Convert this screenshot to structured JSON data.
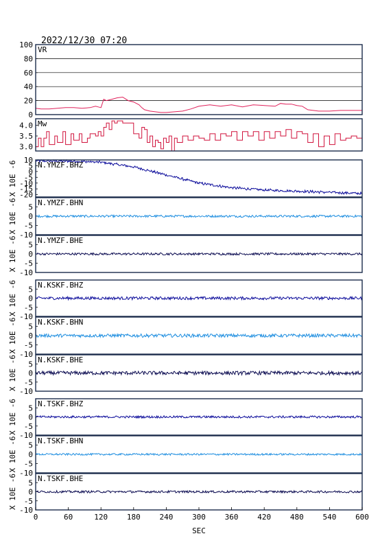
{
  "header": {
    "timestamp": "2022/12/30 07:20"
  },
  "colors": {
    "frame": "#1a2a4a",
    "vr_line": "#e0205a",
    "mw_line": "#d0103a",
    "dark_blue": "#0a0a9a",
    "light_blue": "#1e8ee0",
    "navy": "#0a0a50"
  },
  "x_axis": {
    "label": "SEC",
    "range": [
      0,
      600
    ],
    "ticks": [
      "0",
      "60",
      "120",
      "180",
      "240",
      "300",
      "360",
      "420",
      "480",
      "540",
      "600"
    ]
  },
  "chart_data": [
    {
      "type": "line",
      "name": "VR",
      "ylim": [
        0,
        100
      ],
      "ytick_labels": [
        "0",
        "20",
        "40",
        "60",
        "80",
        "100"
      ],
      "grid": true,
      "x": [
        0,
        10,
        25,
        40,
        55,
        70,
        85,
        100,
        110,
        115,
        120,
        125,
        130,
        140,
        150,
        160,
        170,
        180,
        190,
        195,
        200,
        210,
        220,
        230,
        240,
        255,
        270,
        285,
        300,
        320,
        340,
        360,
        380,
        400,
        420,
        440,
        450,
        460,
        470,
        480,
        490,
        500,
        520,
        540,
        560,
        580,
        600
      ],
      "y": [
        9,
        8,
        8,
        9,
        10,
        10,
        9,
        10,
        12,
        11,
        10,
        22,
        20,
        22,
        24,
        25,
        20,
        18,
        14,
        10,
        7,
        5,
        4,
        3,
        3,
        4,
        5,
        8,
        12,
        14,
        12,
        14,
        11,
        14,
        13,
        12,
        16,
        15,
        15,
        13,
        12,
        7,
        5,
        5,
        6,
        6,
        6
      ]
    },
    {
      "type": "line",
      "name": "Mw",
      "ylim": [
        2.8,
        4.3
      ],
      "ytick_labels": [
        "3.0",
        "3.5",
        "4.0"
      ],
      "x": [
        0,
        5,
        10,
        15,
        20,
        25,
        35,
        40,
        50,
        55,
        65,
        70,
        80,
        85,
        95,
        100,
        110,
        115,
        120,
        125,
        130,
        135,
        140,
        145,
        150,
        160,
        170,
        180,
        190,
        195,
        200,
        205,
        210,
        215,
        220,
        225,
        230,
        235,
        240,
        245,
        250,
        255,
        260,
        270,
        280,
        290,
        300,
        310,
        320,
        330,
        340,
        350,
        360,
        370,
        380,
        390,
        400,
        410,
        420,
        430,
        440,
        450,
        460,
        470,
        480,
        490,
        500,
        510,
        520,
        530,
        540,
        550,
        560,
        570,
        580,
        590,
        600
      ],
      "y": [
        3.0,
        3.4,
        3.0,
        3.4,
        3.7,
        3.1,
        3.5,
        3.2,
        3.7,
        3.1,
        3.6,
        3.3,
        3.6,
        3.2,
        3.4,
        3.6,
        3.5,
        3.7,
        3.5,
        3.9,
        4.1,
        3.8,
        4.2,
        4.1,
        4.2,
        4.1,
        4.1,
        3.6,
        3.4,
        3.9,
        3.8,
        3.2,
        3.5,
        3.0,
        3.3,
        3.2,
        2.9,
        3.4,
        3.2,
        3.5,
        2.8,
        3.4,
        3.2,
        3.5,
        3.3,
        3.5,
        3.4,
        3.3,
        3.6,
        3.3,
        3.6,
        3.5,
        3.7,
        3.3,
        3.7,
        3.5,
        3.7,
        3.3,
        3.7,
        3.4,
        3.7,
        3.5,
        3.8,
        3.4,
        3.7,
        3.6,
        3.2,
        3.6,
        3.0,
        3.5,
        3.1,
        3.6,
        3.3,
        3.4,
        3.5,
        3.4,
        3.8
      ]
    },
    {
      "type": "line",
      "name": "N.YMZF.BHZ",
      "ylabel": "X 10E -6",
      "ylim": [
        -22,
        10
      ],
      "ytick_labels": [
        "10",
        "5",
        "0",
        "-5",
        "-10",
        "-15",
        "-20"
      ],
      "color_key": "dark_blue",
      "waveform": {
        "trend_x": [
          0,
          60,
          120,
          180,
          240,
          300,
          360,
          420,
          480,
          540,
          600
        ],
        "trend_y": [
          9,
          9,
          8,
          4,
          -3,
          -10,
          -14,
          -16,
          -17,
          -18,
          -19
        ],
        "amp": 1.0,
        "noise_amp": 0.6
      }
    },
    {
      "type": "line",
      "name": "N.YMZF.BHN",
      "ylabel": "X 10E -6",
      "ylim": [
        -10,
        10
      ],
      "ytick_labels": [
        "5",
        "0",
        "-5",
        "-10"
      ],
      "color_key": "light_blue",
      "waveform": {
        "level": 0,
        "amp": 0.6
      }
    },
    {
      "type": "line",
      "name": "N.YMZF.BHE",
      "ylabel": "X 10E -6",
      "ylim": [
        -10,
        10
      ],
      "ytick_labels": [
        "5",
        "0",
        "-5",
        "-10"
      ],
      "color_key": "navy",
      "waveform": {
        "level": 0,
        "amp": 0.6
      }
    },
    {
      "type": "line",
      "name": "N.KSKF.BHZ",
      "ylabel": "X 10E -6",
      "ylim": [
        -10,
        10
      ],
      "ytick_labels": [
        "5",
        "0",
        "-5",
        "-10"
      ],
      "color_key": "dark_blue",
      "waveform": {
        "level": 0,
        "amp": 0.8
      }
    },
    {
      "type": "line",
      "name": "N.KSKF.BHN",
      "ylabel": "X 10E -6",
      "ylim": [
        -10,
        10
      ],
      "ytick_labels": [
        "5",
        "0",
        "-5",
        "-10"
      ],
      "color_key": "light_blue",
      "waveform": {
        "level": 0,
        "amp": 0.9
      }
    },
    {
      "type": "line",
      "name": "N.KSKF.BHE",
      "ylabel": "X 10E -6",
      "ylim": [
        -10,
        10
      ],
      "ytick_labels": [
        "5",
        "0",
        "-5",
        "-10"
      ],
      "color_key": "navy",
      "waveform": {
        "level": 0,
        "amp": 1.0
      }
    },
    {
      "type": "line",
      "name": "N.TSKF.BHZ",
      "ylabel": "X 10E -6",
      "ylim": [
        -10,
        10
      ],
      "ytick_labels": [
        "5",
        "0",
        "-5",
        "-10"
      ],
      "color_key": "dark_blue",
      "waveform": {
        "level": 0,
        "amp": 0.6
      }
    },
    {
      "type": "line",
      "name": "N.TSKF.BHN",
      "ylabel": "X 10E -6",
      "ylim": [
        -10,
        10
      ],
      "ytick_labels": [
        "5",
        "0",
        "-5",
        "-10"
      ],
      "color_key": "light_blue",
      "waveform": {
        "level": 0,
        "amp": 0.5
      }
    },
    {
      "type": "line",
      "name": "N.TSKF.BHE",
      "ylabel": "X 10E -6",
      "ylim": [
        -10,
        10
      ],
      "ytick_labels": [
        "5",
        "0",
        "-5",
        "-10"
      ],
      "color_key": "navy",
      "waveform": {
        "level": 0,
        "amp": 0.6
      }
    }
  ]
}
